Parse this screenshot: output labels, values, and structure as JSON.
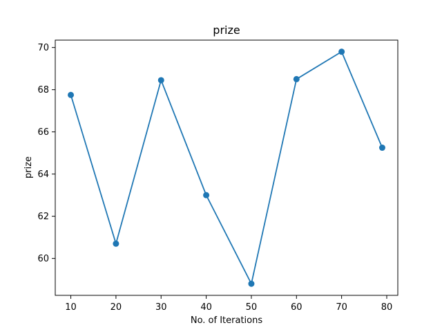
{
  "chart_data": {
    "type": "line",
    "title": "prize",
    "xlabel": "No. of Iterations",
    "ylabel": "prize",
    "x": [
      10,
      20,
      30,
      40,
      50,
      60,
      70,
      79
    ],
    "series": [
      {
        "name": "",
        "values": [
          67.75,
          60.7,
          68.45,
          63.0,
          58.8,
          68.5,
          69.8,
          65.25
        ],
        "color": "#1f77b4",
        "marker": "circle"
      }
    ],
    "xlim": [
      6.55,
      82.45
    ],
    "ylim": [
      58.25,
      70.35
    ],
    "xticks": [
      10,
      20,
      30,
      40,
      50,
      60,
      70,
      80
    ],
    "yticks": [
      60,
      62,
      64,
      66,
      68,
      70
    ],
    "grid": false
  }
}
